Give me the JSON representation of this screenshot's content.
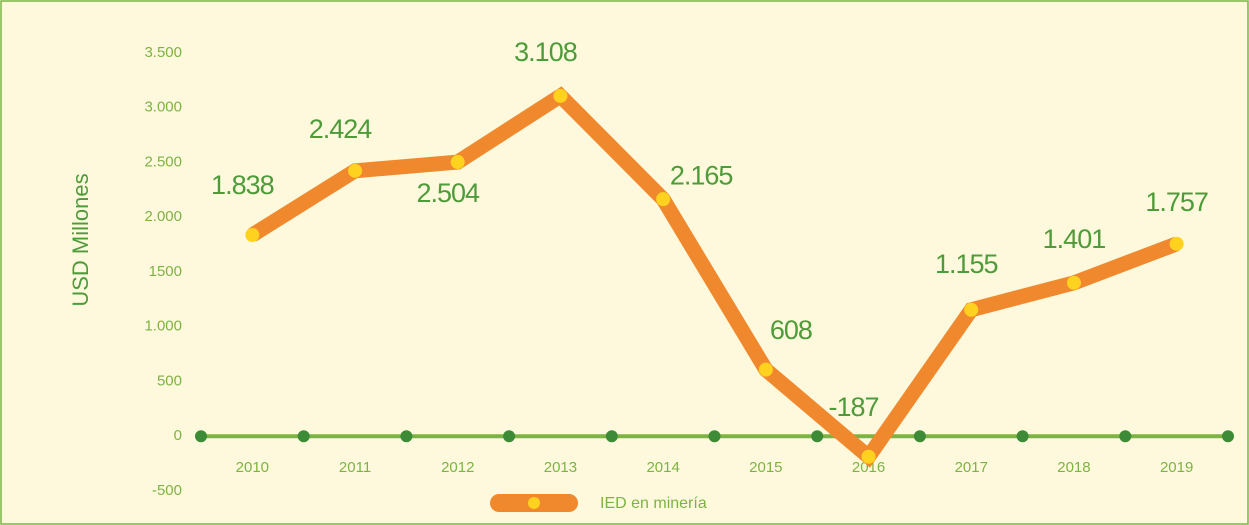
{
  "chart_data": {
    "type": "line",
    "y_axis_label": "USD Millones",
    "categories": [
      "2010",
      "2011",
      "2012",
      "2013",
      "2014",
      "2015",
      "2016",
      "2017",
      "2018",
      "2019"
    ],
    "series": [
      {
        "name": "IED en minería",
        "color": "#f0892e",
        "marker_color": "#ffd21f",
        "values": [
          1838,
          2424,
          2504,
          3108,
          2165,
          608,
          -187,
          1155,
          1401,
          1757
        ],
        "value_labels": [
          "1.838",
          "2.424",
          "2.504",
          "3.108",
          "2.165",
          "608",
          "-187",
          "1.155",
          "1.401",
          "1.757"
        ]
      }
    ],
    "ylim": [
      -500,
      3500
    ],
    "yticks": [
      {
        "value": 3500,
        "label": "3.500"
      },
      {
        "value": 3000,
        "label": "3.000"
      },
      {
        "value": 2500,
        "label": "2.500"
      },
      {
        "value": 2000,
        "label": "2.000"
      },
      1500,
      {
        "value": 1000,
        "label": "1.000"
      },
      500,
      0,
      -500
    ],
    "legend": "bottom"
  }
}
